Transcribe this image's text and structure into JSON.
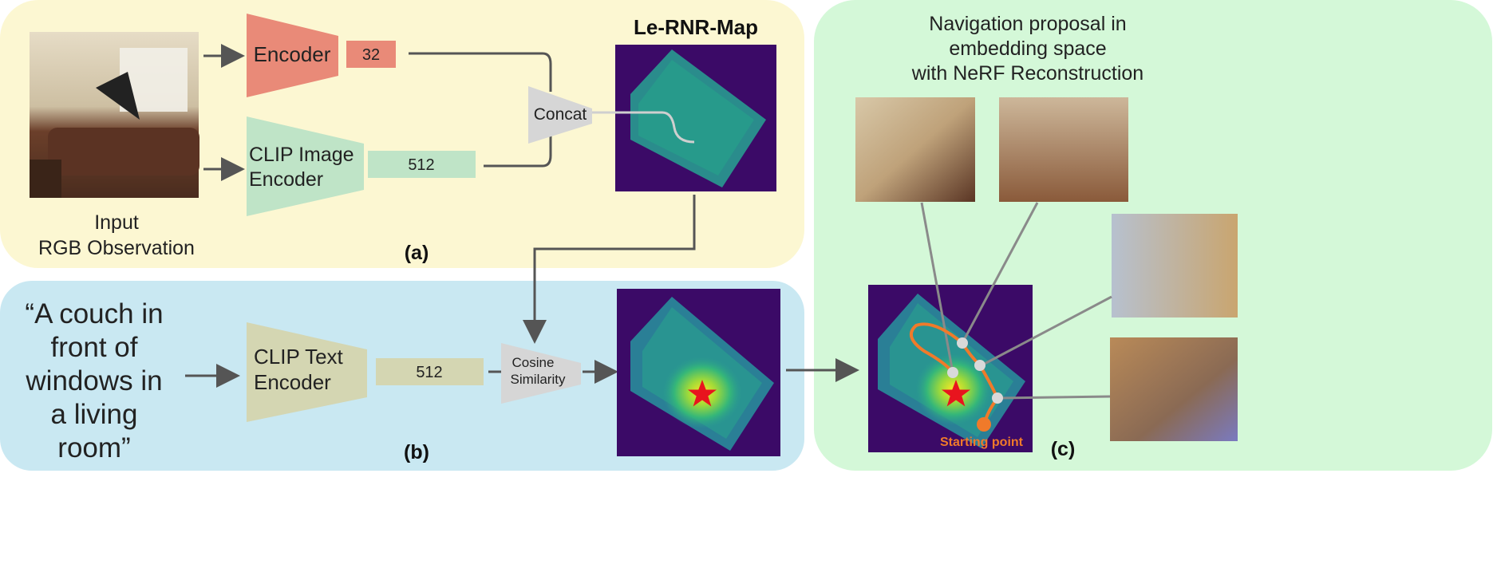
{
  "panel_a": {
    "label": "(a)",
    "input_caption_line1": "Input",
    "input_caption_line2": "RGB Observation",
    "encoder_label": "Encoder",
    "encoder_dim": "32",
    "clip_image_encoder_line1": "CLIP Image",
    "clip_image_encoder_line2": "Encoder",
    "clip_image_dim": "512",
    "concat_label": "Concat",
    "map_title": "Le-RNR-Map"
  },
  "panel_b": {
    "label": "(b)",
    "query_lines": [
      "“A couch in",
      "front of",
      "windows in",
      "a living",
      "room”"
    ],
    "clip_text_encoder_line1": "CLIP Text",
    "clip_text_encoder_line2": "Encoder",
    "clip_text_dim": "512",
    "cosine_line1": "Cosine",
    "cosine_line2": "Similarity"
  },
  "panel_c": {
    "label": "(c)",
    "title_lines": [
      "Navigation proposal in",
      "embedding space",
      "with NeRF Reconstruction"
    ],
    "starting_point_label": "Starting point"
  },
  "colors": {
    "panel_a_bg": "#fcf7d2",
    "panel_b_bg": "#c9e8f2",
    "panel_c_bg": "#d4f8d8",
    "encoder": "#e98a78",
    "encoder_dim_box": "#e98a78",
    "clip_image_encoder": "#bfe4c7",
    "clip_image_dim_box": "#bfe4c7",
    "clip_text_encoder": "#d4d6b2",
    "clip_text_dim_box": "#d4d6b2",
    "concat": "#d6d6d6",
    "cosine": "#d6d6d6",
    "map_bg": "#3b0a67",
    "arrow": "#555555",
    "path": "#f07a2a",
    "star": "#e8141e"
  }
}
